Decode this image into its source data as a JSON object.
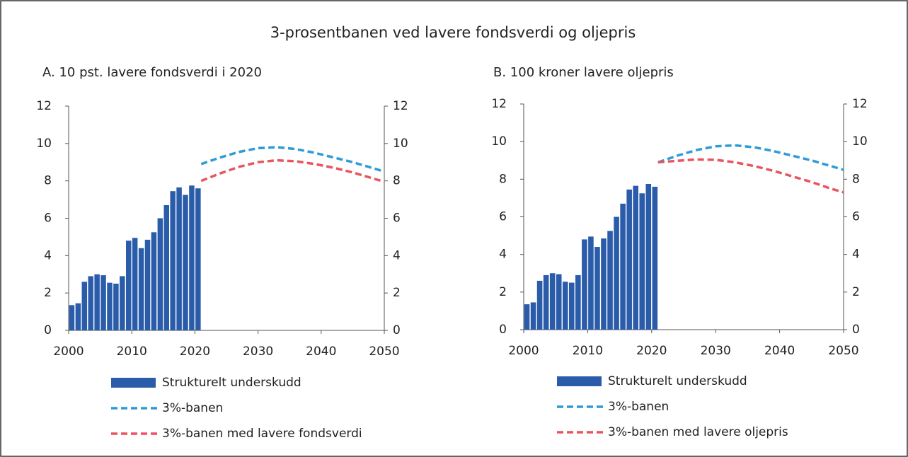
{
  "title": "3-prosentbanen ved lavere fondsverdi og oljepris",
  "chart_data": [
    {
      "type": "combo",
      "subtitle": "A. 10 pst. lavere fondsverdi i 2020",
      "xlim": [
        2000,
        2050
      ],
      "xticks": [
        2000,
        2010,
        2020,
        2030,
        2040,
        2050
      ],
      "ylim": [
        0,
        12
      ],
      "yticks": [
        0,
        2,
        4,
        6,
        8,
        10,
        12
      ],
      "y2lim": [
        0,
        12
      ],
      "y2ticks": [
        0,
        2,
        4,
        6,
        8,
        10,
        12
      ],
      "series": [
        {
          "name": "Strukturelt underskudd",
          "type": "bar",
          "color": "#2a5caa",
          "x": [
            2000,
            2001,
            2002,
            2003,
            2004,
            2005,
            2006,
            2007,
            2008,
            2009,
            2010,
            2011,
            2012,
            2013,
            2014,
            2015,
            2016,
            2017,
            2018,
            2019,
            2020
          ],
          "values": [
            1.35,
            1.45,
            2.6,
            2.9,
            3.0,
            2.95,
            2.55,
            2.5,
            2.9,
            4.8,
            4.95,
            4.4,
            4.85,
            5.25,
            6.0,
            6.7,
            7.45,
            7.65,
            7.25,
            7.75,
            7.6
          ]
        },
        {
          "name": "3%-banen",
          "type": "line",
          "dash": true,
          "color": "#2e9bd6",
          "x": [
            2021,
            2024,
            2027,
            2030,
            2033,
            2036,
            2039,
            2042,
            2045,
            2048,
            2050
          ],
          "values": [
            8.9,
            9.25,
            9.55,
            9.75,
            9.8,
            9.7,
            9.5,
            9.25,
            9.0,
            8.7,
            8.5
          ]
        },
        {
          "name": "3%-banen med lavere fondsverdi",
          "type": "line",
          "dash": true,
          "color": "#e8545f",
          "x": [
            2021,
            2024,
            2027,
            2030,
            2033,
            2036,
            2039,
            2042,
            2045,
            2048,
            2050
          ],
          "values": [
            8.0,
            8.4,
            8.75,
            9.0,
            9.1,
            9.05,
            8.9,
            8.7,
            8.45,
            8.15,
            7.95
          ]
        }
      ]
    },
    {
      "type": "combo",
      "subtitle": "B.  100 kroner lavere oljepris",
      "xlim": [
        2000,
        2050
      ],
      "xticks": [
        2000,
        2010,
        2020,
        2030,
        2040,
        2050
      ],
      "ylim": [
        0,
        12
      ],
      "yticks": [
        0,
        2,
        4,
        6,
        8,
        10,
        12
      ],
      "y2lim": [
        0,
        12
      ],
      "y2ticks": [
        0,
        2,
        4,
        6,
        8,
        10,
        12
      ],
      "series": [
        {
          "name": "Strukturelt underskudd",
          "type": "bar",
          "color": "#2a5caa",
          "x": [
            2000,
            2001,
            2002,
            2003,
            2004,
            2005,
            2006,
            2007,
            2008,
            2009,
            2010,
            2011,
            2012,
            2013,
            2014,
            2015,
            2016,
            2017,
            2018,
            2019,
            2020
          ],
          "values": [
            1.35,
            1.45,
            2.6,
            2.9,
            3.0,
            2.95,
            2.55,
            2.5,
            2.9,
            4.8,
            4.95,
            4.4,
            4.85,
            5.25,
            6.0,
            6.7,
            7.45,
            7.65,
            7.25,
            7.75,
            7.6
          ]
        },
        {
          "name": "3%-banen",
          "type": "line",
          "dash": true,
          "color": "#2e9bd6",
          "x": [
            2021,
            2024,
            2027,
            2030,
            2033,
            2036,
            2039,
            2042,
            2045,
            2048,
            2050
          ],
          "values": [
            8.9,
            9.25,
            9.55,
            9.75,
            9.8,
            9.7,
            9.5,
            9.25,
            9.0,
            8.7,
            8.5
          ]
        },
        {
          "name": "3%-banen med lavere oljepris",
          "type": "line",
          "dash": true,
          "color": "#e8545f",
          "x": [
            2021,
            2024,
            2027,
            2030,
            2033,
            2036,
            2039,
            2042,
            2045,
            2048,
            2050
          ],
          "values": [
            8.9,
            8.98,
            9.05,
            9.03,
            8.9,
            8.7,
            8.45,
            8.15,
            7.85,
            7.5,
            7.3
          ]
        }
      ]
    }
  ]
}
